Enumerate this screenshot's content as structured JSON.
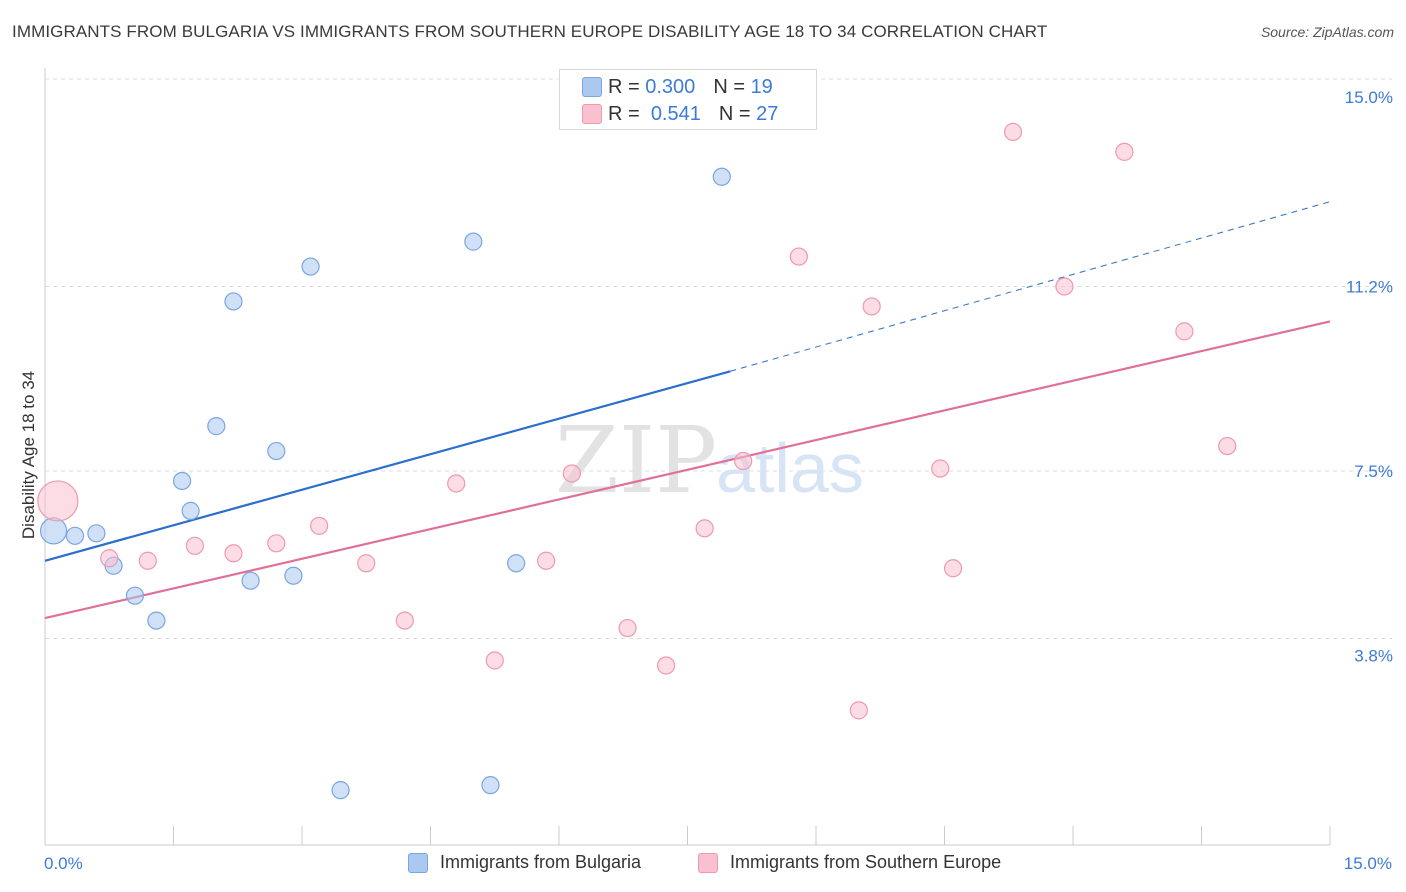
{
  "title": "IMMIGRANTS FROM BULGARIA VS IMMIGRANTS FROM SOUTHERN EUROPE DISABILITY AGE 18 TO 34 CORRELATION CHART",
  "source": "Source: ZipAtlas.com",
  "watermark": {
    "zip": "ZIP",
    "atlas": "atlas"
  },
  "legend_stats": [
    {
      "r_label": "R =",
      "r_value": "0.300",
      "n_label": "N =",
      "n_value": "19",
      "color": "#aac8f0",
      "border": "#7aa6e0"
    },
    {
      "r_label": "R =",
      "r_value": "0.541",
      "n_label": "N =",
      "n_value": "27",
      "color": "#f9c0d0",
      "border": "#ee99b2"
    }
  ],
  "chart_data": {
    "type": "scatter",
    "xlabel": "",
    "ylabel": "Disability Age 18 to 34",
    "xlim": [
      0,
      15
    ],
    "ylim": [
      0,
      15
    ],
    "x_tick_labels": [
      {
        "value": 0,
        "label": "0.0%"
      },
      {
        "value": 15,
        "label": "15.0%"
      }
    ],
    "y_tick_labels": [
      {
        "value": 3.8,
        "label": "3.8%"
      },
      {
        "value": 7.5,
        "label": "7.5%"
      },
      {
        "value": 11.2,
        "label": "11.2%"
      },
      {
        "value": 15.0,
        "label": "15.0%"
      }
    ],
    "grid": true,
    "legend_position": "bottom",
    "series": [
      {
        "name": "Immigrants from Bulgaria",
        "color": "#aac8f0",
        "stroke": "#7aa6e0",
        "line_color": "#2a6fcc",
        "trend": {
          "x0": 0,
          "y0": 5.7,
          "x1": 8.0,
          "y1": 9.5,
          "dashed_to_x": 15,
          "dashed_to_y": 12.9
        },
        "points": [
          {
            "x": 0.1,
            "y": 6.3,
            "size": "large"
          },
          {
            "x": 0.35,
            "y": 6.2
          },
          {
            "x": 0.6,
            "y": 6.25
          },
          {
            "x": 0.8,
            "y": 5.6
          },
          {
            "x": 1.05,
            "y": 5.0
          },
          {
            "x": 1.3,
            "y": 4.5
          },
          {
            "x": 1.6,
            "y": 7.3
          },
          {
            "x": 1.7,
            "y": 6.7
          },
          {
            "x": 2.0,
            "y": 8.4
          },
          {
            "x": 2.2,
            "y": 10.9
          },
          {
            "x": 2.4,
            "y": 5.3
          },
          {
            "x": 2.7,
            "y": 7.9
          },
          {
            "x": 2.9,
            "y": 5.4
          },
          {
            "x": 3.1,
            "y": 11.6
          },
          {
            "x": 3.45,
            "y": 1.1
          },
          {
            "x": 5.0,
            "y": 12.1
          },
          {
            "x": 5.2,
            "y": 1.2
          },
          {
            "x": 5.5,
            "y": 5.65
          },
          {
            "x": 7.9,
            "y": 13.4
          }
        ]
      },
      {
        "name": "Immigrants from Southern Europe",
        "color": "#f9c0d0",
        "stroke": "#ee99b2",
        "line_color": "#e0709a",
        "trend": {
          "x0": 0,
          "y0": 4.55,
          "x1": 15,
          "y1": 10.5
        },
        "points": [
          {
            "x": 0.15,
            "y": 6.9,
            "size": "large"
          },
          {
            "x": 0.75,
            "y": 5.75
          },
          {
            "x": 1.2,
            "y": 5.7
          },
          {
            "x": 1.75,
            "y": 6.0
          },
          {
            "x": 2.2,
            "y": 5.85
          },
          {
            "x": 2.7,
            "y": 6.05
          },
          {
            "x": 3.2,
            "y": 6.4
          },
          {
            "x": 3.75,
            "y": 5.65
          },
          {
            "x": 4.2,
            "y": 4.5
          },
          {
            "x": 4.8,
            "y": 7.25
          },
          {
            "x": 5.25,
            "y": 3.7
          },
          {
            "x": 5.85,
            "y": 5.7
          },
          {
            "x": 6.15,
            "y": 7.45
          },
          {
            "x": 6.8,
            "y": 4.35
          },
          {
            "x": 7.25,
            "y": 3.6
          },
          {
            "x": 7.7,
            "y": 6.35
          },
          {
            "x": 8.15,
            "y": 7.7
          },
          {
            "x": 8.8,
            "y": 11.8
          },
          {
            "x": 9.5,
            "y": 2.7
          },
          {
            "x": 9.65,
            "y": 10.8
          },
          {
            "x": 10.45,
            "y": 7.55
          },
          {
            "x": 10.6,
            "y": 5.55
          },
          {
            "x": 11.3,
            "y": 14.3
          },
          {
            "x": 11.9,
            "y": 11.2
          },
          {
            "x": 12.6,
            "y": 13.9
          },
          {
            "x": 13.3,
            "y": 10.3
          },
          {
            "x": 13.8,
            "y": 8.0
          }
        ]
      }
    ]
  }
}
